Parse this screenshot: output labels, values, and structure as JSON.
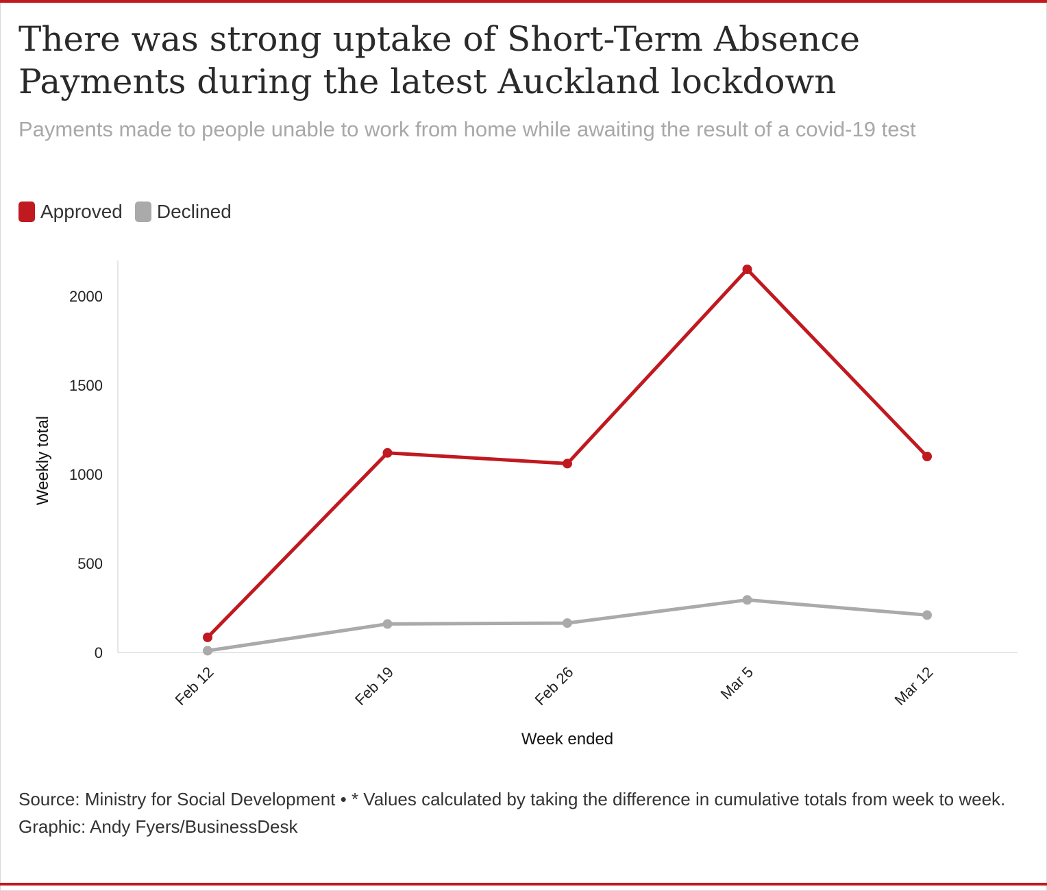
{
  "header": {
    "title": "There was strong uptake of Short-Term Absence Payments during the latest Auckland lockdown",
    "subtitle": "Payments made to people unable to work from home while awaiting the result of a covid-19 test"
  },
  "colors": {
    "approved": "#c0191f",
    "declined": "#aaaaaa",
    "accent": "#c0191f"
  },
  "legend": [
    {
      "label": "Approved",
      "color": "#c0191f"
    },
    {
      "label": "Declined",
      "color": "#aaaaaa"
    }
  ],
  "chart_data": {
    "type": "line",
    "x": [
      "Feb 12",
      "Feb 19",
      "Feb 26",
      "Mar 5",
      "Mar 12"
    ],
    "series": [
      {
        "name": "Approved",
        "color": "#c0191f",
        "values": [
          85,
          1120,
          1060,
          2150,
          1100
        ]
      },
      {
        "name": "Declined",
        "color": "#aaaaaa",
        "values": [
          10,
          160,
          165,
          295,
          210
        ]
      }
    ],
    "xlabel": "Week ended",
    "ylabel": "Weekly total",
    "yticks": [
      0,
      500,
      1000,
      1500,
      2000
    ],
    "ylim": [
      0,
      2200
    ],
    "grid": false,
    "legend_position": "top-left"
  },
  "footer": {
    "source": "Source: Ministry for Social Development • * Values calculated by taking the difference in cumulative totals from week to week.",
    "credit": "Graphic: Andy Fyers/BusinessDesk"
  }
}
